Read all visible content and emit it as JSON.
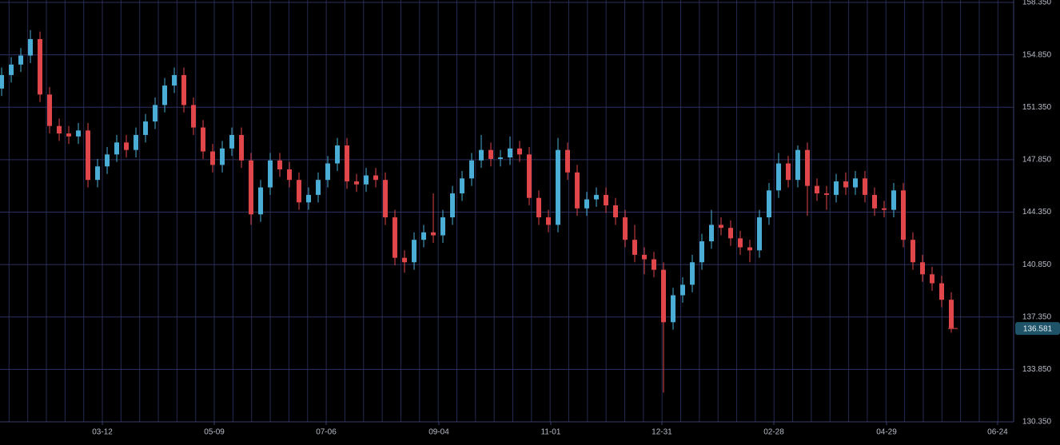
{
  "chart_data": {
    "type": "candlestick",
    "open": [
      152.6,
      153.5,
      154.2,
      154.8,
      155.9,
      152.2,
      150.1,
      149.6,
      149.4,
      149.8,
      146.5,
      147.4,
      148.2,
      149.0,
      148.5,
      149.5,
      150.4,
      151.5,
      152.8,
      153.5,
      151.5,
      150.0,
      148.4,
      147.5,
      148.6,
      149.5,
      147.8,
      144.2,
      146.0,
      147.8,
      147.2,
      146.5,
      145.0,
      145.5,
      146.5,
      147.6,
      148.8,
      146.4,
      146.2,
      146.8,
      146.5,
      144.0,
      141.3,
      141.0,
      142.5,
      143.0,
      142.8,
      144.0,
      145.6,
      146.6,
      147.8,
      148.5,
      147.9,
      148.0,
      148.6,
      148.2,
      145.3,
      144.0,
      143.5,
      148.5,
      147.0,
      144.6,
      145.2,
      145.5,
      144.8,
      144.0,
      142.5,
      141.5,
      141.2,
      140.5,
      137.0,
      138.8,
      139.5,
      141.0,
      142.4,
      143.5,
      143.3,
      142.6,
      142.0,
      141.8,
      144.0,
      145.8,
      147.6,
      146.5,
      148.5,
      146.1,
      145.6,
      145.5,
      146.4,
      146.0,
      146.6,
      145.5,
      144.6,
      144.5,
      145.8,
      142.5,
      141.0,
      140.2,
      139.6,
      138.5
    ],
    "high": [
      154.0,
      154.7,
      155.3,
      156.5,
      156.4,
      152.7,
      150.6,
      150.1,
      150.3,
      150.3,
      147.9,
      148.7,
      149.5,
      149.5,
      150.0,
      150.9,
      152.0,
      153.3,
      154.0,
      154.0,
      152.0,
      150.5,
      148.9,
      149.1,
      150.0,
      150.0,
      148.3,
      146.5,
      148.3,
      148.3,
      147.7,
      147.0,
      146.0,
      147.0,
      148.1,
      149.3,
      149.3,
      146.9,
      147.3,
      147.3,
      147.0,
      144.5,
      141.8,
      143.0,
      143.5,
      145.6,
      144.5,
      146.1,
      147.1,
      148.3,
      149.5,
      149.0,
      148.5,
      149.4,
      149.1,
      148.7,
      145.8,
      144.5,
      149.3,
      149.0,
      147.5,
      145.7,
      146.0,
      146.0,
      145.3,
      144.5,
      143.5,
      142.0,
      141.7,
      141.0,
      139.3,
      140.0,
      141.5,
      142.9,
      144.5,
      144.0,
      143.8,
      143.1,
      142.5,
      144.5,
      146.3,
      148.3,
      148.1,
      148.8,
      149.0,
      146.6,
      146.1,
      146.9,
      147.0,
      147.1,
      147.1,
      146.0,
      145.1,
      146.3,
      146.3,
      143.0,
      141.5,
      140.7,
      140.1,
      139.0
    ],
    "low": [
      152.1,
      153.0,
      153.7,
      154.3,
      151.7,
      149.6,
      149.1,
      148.9,
      148.9,
      146.0,
      146.0,
      146.9,
      147.7,
      148.0,
      148.0,
      149.0,
      149.9,
      151.0,
      152.3,
      151.0,
      149.5,
      147.9,
      147.0,
      147.0,
      148.1,
      147.3,
      143.5,
      143.7,
      145.5,
      146.7,
      146.0,
      144.5,
      144.5,
      145.0,
      146.0,
      147.1,
      145.9,
      145.7,
      145.7,
      146.0,
      143.5,
      140.8,
      140.3,
      140.5,
      142.0,
      142.3,
      142.3,
      143.5,
      145.1,
      146.1,
      147.3,
      147.4,
      147.4,
      147.5,
      147.7,
      144.8,
      143.5,
      143.0,
      143.0,
      146.5,
      144.1,
      144.1,
      144.7,
      144.3,
      143.5,
      142.0,
      141.0,
      140.2,
      140.0,
      132.3,
      136.5,
      138.3,
      139.0,
      140.5,
      141.9,
      142.8,
      142.1,
      141.5,
      141.0,
      141.3,
      143.5,
      145.3,
      146.0,
      146.0,
      144.1,
      145.1,
      144.5,
      145.0,
      145.5,
      145.5,
      145.0,
      144.1,
      144.0,
      144.0,
      142.0,
      140.5,
      139.7,
      139.1,
      138.0,
      136.3
    ],
    "close": [
      153.5,
      154.2,
      154.8,
      155.9,
      152.2,
      150.1,
      149.6,
      149.4,
      149.8,
      146.5,
      147.4,
      148.2,
      149.0,
      148.5,
      149.5,
      150.4,
      151.5,
      152.8,
      153.5,
      151.5,
      150.0,
      148.4,
      147.5,
      148.6,
      149.5,
      147.8,
      144.2,
      146.0,
      147.8,
      147.2,
      146.5,
      145.0,
      145.5,
      146.5,
      147.6,
      148.8,
      146.4,
      146.2,
      146.8,
      146.5,
      144.0,
      141.3,
      141.0,
      142.5,
      143.0,
      142.8,
      144.0,
      145.6,
      146.6,
      147.8,
      148.5,
      147.9,
      148.0,
      148.6,
      148.2,
      145.3,
      144.0,
      143.5,
      148.5,
      147.0,
      144.6,
      145.2,
      145.5,
      144.8,
      144.0,
      142.5,
      141.5,
      141.2,
      140.5,
      137.0,
      138.8,
      139.5,
      141.0,
      142.4,
      143.5,
      143.3,
      142.6,
      142.0,
      141.8,
      144.0,
      145.8,
      147.6,
      146.5,
      148.5,
      146.1,
      145.6,
      145.5,
      146.4,
      146.0,
      146.6,
      145.5,
      144.6,
      144.5,
      145.8,
      142.5,
      141.0,
      140.2,
      139.6,
      138.5,
      136.6
    ],
    "up_color": "#4aaed6",
    "down_color": "#e0464a",
    "last_price": 136.581,
    "xlim": [
      -0.17,
      105.5
    ],
    "xticks": [
      {
        "value": 10.5,
        "label": "03-12"
      },
      {
        "value": 22.17,
        "label": "05-09"
      },
      {
        "value": 33.83,
        "label": "07-06"
      },
      {
        "value": 45.58,
        "label": "09-04"
      },
      {
        "value": 57.25,
        "label": "11-01"
      },
      {
        "value": 68.83,
        "label": "12-31"
      },
      {
        "value": 80.5,
        "label": "02-28"
      },
      {
        "value": 92.25,
        "label": "04-29"
      },
      {
        "value": 103.83,
        "label": "06-24"
      }
    ],
    "ylim": [
      130.35,
      158.35
    ],
    "yticks": [
      {
        "value": 130.35,
        "label": "130.350"
      },
      {
        "value": 133.85,
        "label": "133.850"
      },
      {
        "value": 137.35,
        "label": "137.350"
      },
      {
        "value": 140.85,
        "label": "140.850"
      },
      {
        "value": 144.35,
        "label": "144.350"
      },
      {
        "value": 147.85,
        "label": "147.850"
      },
      {
        "value": 151.35,
        "label": "151.350"
      },
      {
        "value": 154.85,
        "label": "154.850"
      },
      {
        "value": 158.35,
        "label": "158.350"
      }
    ],
    "grid": true
  }
}
